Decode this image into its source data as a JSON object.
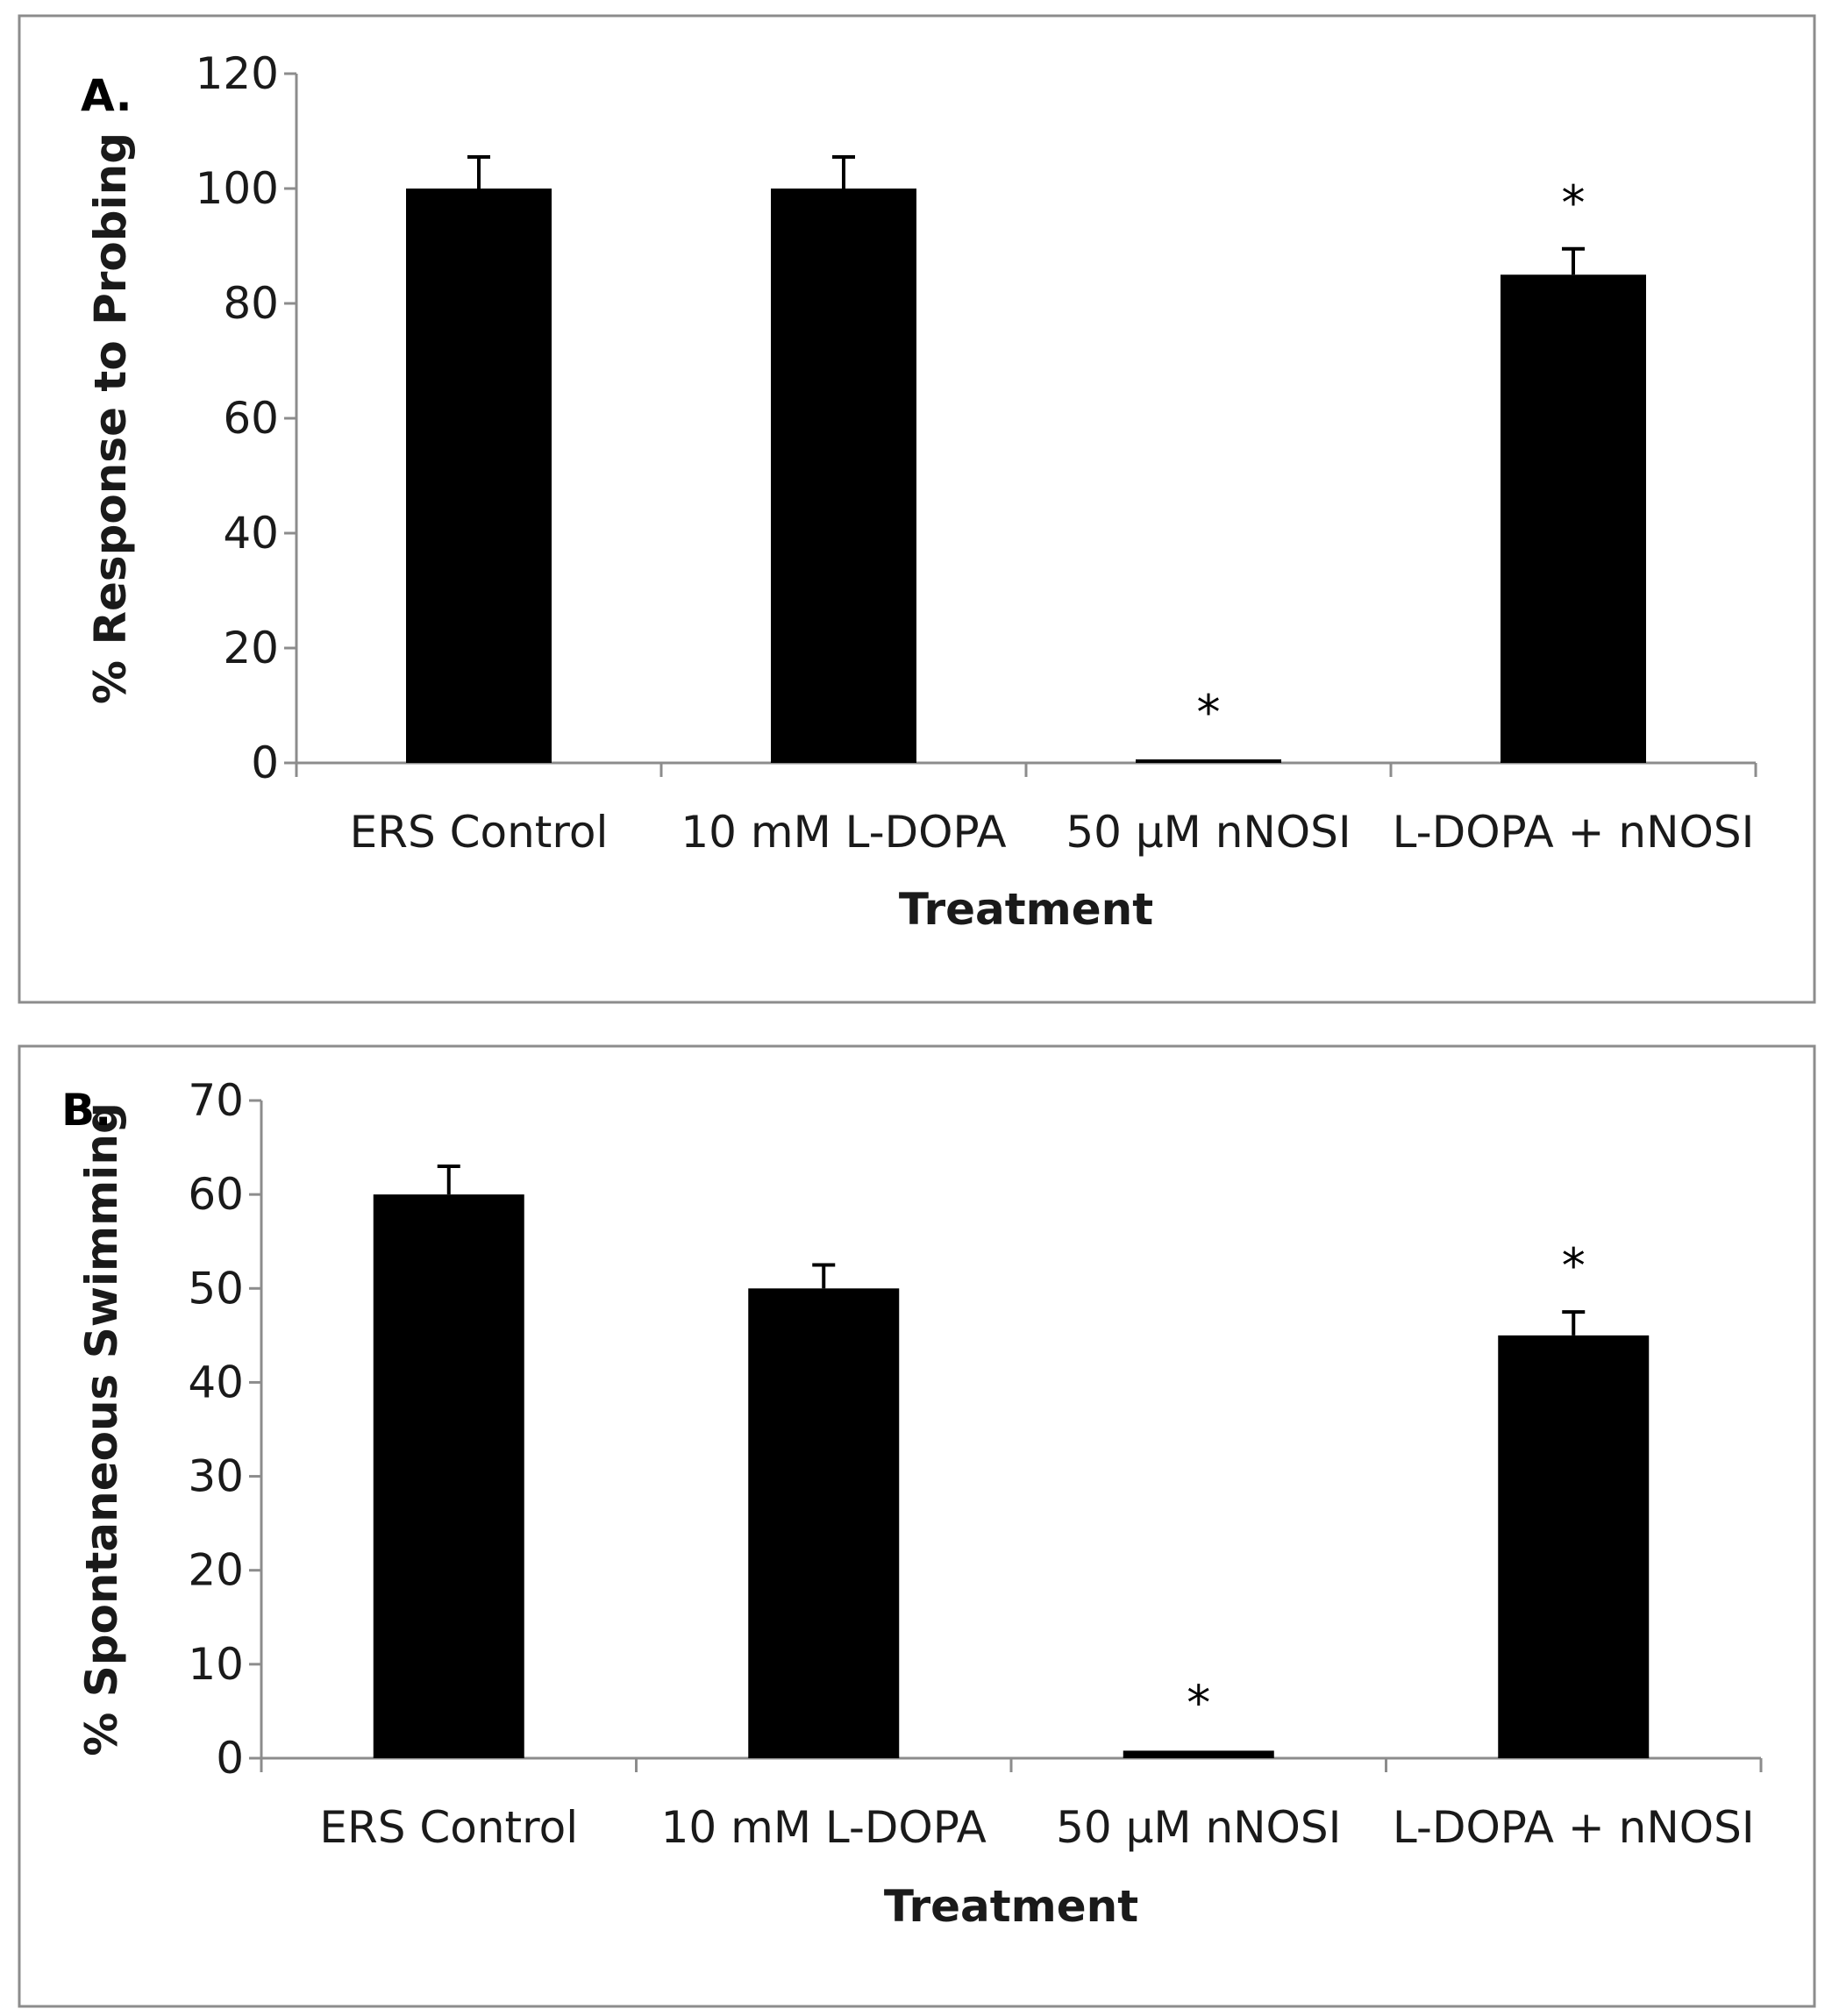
{
  "figure": {
    "colors": {
      "bar": "#000000",
      "axis": "#8c8c8c",
      "frame": "#8c8c8c",
      "text": "#1a1a1a"
    }
  },
  "chart_data": [
    {
      "type": "bar",
      "panel_label": "A.",
      "title": "",
      "xlabel": "Treatment",
      "ylabel": "% Response to Probing",
      "categories": [
        "ERS Control",
        "10 mM L-DOPA",
        "50 μM nNOSI",
        "L-DOPA + nNOSI"
      ],
      "values": [
        100,
        100,
        0.5,
        85
      ],
      "errors": [
        5.5,
        5.5,
        0.3,
        4.5
      ],
      "significance": [
        "",
        "",
        "*",
        "*"
      ],
      "ylim": [
        0,
        120
      ],
      "yticks": [
        0,
        20,
        40,
        60,
        80,
        100,
        120
      ],
      "grid": false
    },
    {
      "type": "bar",
      "panel_label": "B.",
      "title": "",
      "xlabel": "Treatment",
      "ylabel": "% Spontaneous Swimming",
      "categories": [
        "ERS Control",
        "10 mM L-DOPA",
        "50 μM nNOSI",
        "L-DOPA + nNOSI"
      ],
      "values": [
        60,
        50,
        0.8,
        45
      ],
      "errors": [
        3,
        2.5,
        0.2,
        2.5
      ],
      "significance": [
        "",
        "",
        "*",
        "*"
      ],
      "ylim": [
        0,
        70
      ],
      "yticks": [
        0,
        10,
        20,
        30,
        40,
        50,
        60,
        70
      ],
      "grid": false
    }
  ]
}
